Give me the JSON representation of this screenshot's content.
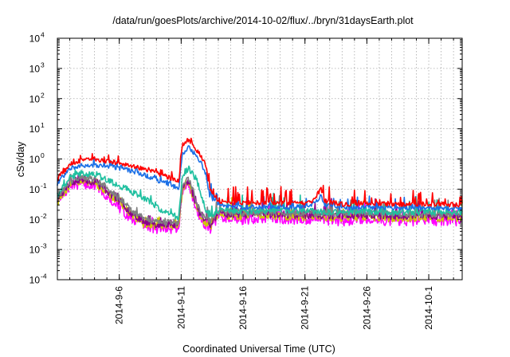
{
  "chart_data": {
    "type": "line",
    "title": "/data/run/goesPlots/archive/2014-10-02/flux/../bryn/31daysEarth.plot",
    "xlabel": "Coordinated Universal Time (UTC)",
    "ylabel": "cSv/day",
    "y_scale": "log",
    "xlim": [
      1.0,
      33.7
    ],
    "ylim_exp": [
      -4,
      4
    ],
    "grid": true,
    "x_unit_note": "day offset from 2014-09-01",
    "x_ticks": [
      {
        "x": 6,
        "label": "2014-9-6"
      },
      {
        "x": 11,
        "label": "2014-9-11"
      },
      {
        "x": 16,
        "label": "2014-9-16"
      },
      {
        "x": 21,
        "label": "2014-9-21"
      },
      {
        "x": 26,
        "label": "2014-9-26"
      },
      {
        "x": 31,
        "label": "2014-10-1"
      }
    ],
    "y_ticks": [
      {
        "exp": -4,
        "base": "10",
        "sup": "-4"
      },
      {
        "exp": -3,
        "base": "10",
        "sup": "-3"
      },
      {
        "exp": -2,
        "base": "10",
        "sup": "-2"
      },
      {
        "exp": -1,
        "base": "10",
        "sup": "-1"
      },
      {
        "exp": 0,
        "base": "10",
        "sup": "0"
      },
      {
        "exp": 1,
        "base": "10",
        "sup": "1"
      },
      {
        "exp": 2,
        "base": "10",
        "sup": "2"
      },
      {
        "exp": 3,
        "base": "10",
        "sup": "3"
      },
      {
        "exp": 4,
        "base": "10",
        "sup": "4"
      }
    ],
    "series": [
      {
        "color": "#ff00ff",
        "noise": 0.35,
        "seed": 7,
        "points": [
          [
            1.0,
            0.03
          ],
          [
            2.0,
            0.13
          ],
          [
            3.0,
            0.16
          ],
          [
            4.0,
            0.12
          ],
          [
            5.0,
            0.06
          ],
          [
            6.0,
            0.025
          ],
          [
            7.0,
            0.01
          ],
          [
            8.0,
            0.006
          ],
          [
            9.0,
            0.005
          ],
          [
            10.0,
            0.005
          ],
          [
            10.8,
            0.005
          ],
          [
            11.1,
            0.1
          ],
          [
            11.6,
            0.15
          ],
          [
            12.0,
            0.04
          ],
          [
            12.5,
            0.012
          ],
          [
            13.0,
            0.006
          ],
          [
            13.4,
            0.005
          ],
          [
            14.0,
            0.012
          ],
          [
            16.0,
            0.01
          ],
          [
            18.0,
            0.011
          ],
          [
            20.0,
            0.01
          ],
          [
            22.0,
            0.01
          ],
          [
            24.0,
            0.009
          ],
          [
            26.0,
            0.01
          ],
          [
            28.0,
            0.009
          ],
          [
            30.0,
            0.009
          ],
          [
            32.0,
            0.009
          ],
          [
            33.7,
            0.009
          ]
        ]
      },
      {
        "color": "#cccc00",
        "noise": 0.25,
        "seed": 11,
        "points": [
          [
            1.0,
            0.035
          ],
          [
            2.0,
            0.14
          ],
          [
            3.0,
            0.2
          ],
          [
            4.0,
            0.15
          ],
          [
            5.0,
            0.08
          ],
          [
            6.0,
            0.035
          ],
          [
            7.0,
            0.014
          ],
          [
            8.0,
            0.007
          ],
          [
            9.0,
            0.006
          ],
          [
            10.0,
            0.006
          ],
          [
            10.8,
            0.006
          ],
          [
            11.1,
            0.1
          ],
          [
            11.6,
            0.16
          ],
          [
            12.0,
            0.05
          ],
          [
            12.5,
            0.013
          ],
          [
            13.0,
            0.007
          ],
          [
            13.4,
            0.006
          ],
          [
            14.0,
            0.014
          ],
          [
            16.0,
            0.012
          ],
          [
            18.0,
            0.013
          ],
          [
            20.0,
            0.012
          ],
          [
            22.0,
            0.012
          ],
          [
            24.0,
            0.011
          ],
          [
            26.0,
            0.012
          ],
          [
            28.0,
            0.011
          ],
          [
            30.0,
            0.011
          ],
          [
            32.0,
            0.011
          ],
          [
            33.7,
            0.011
          ]
        ]
      },
      {
        "color": "#8b008b",
        "noise": 0.25,
        "seed": 23,
        "points": [
          [
            1.0,
            0.04
          ],
          [
            2.0,
            0.16
          ],
          [
            3.0,
            0.22
          ],
          [
            4.0,
            0.17
          ],
          [
            5.0,
            0.09
          ],
          [
            6.0,
            0.04
          ],
          [
            7.0,
            0.016
          ],
          [
            8.0,
            0.009
          ],
          [
            9.0,
            0.007
          ],
          [
            10.0,
            0.007
          ],
          [
            10.8,
            0.007
          ],
          [
            11.1,
            0.12
          ],
          [
            11.6,
            0.18
          ],
          [
            12.0,
            0.06
          ],
          [
            12.5,
            0.015
          ],
          [
            13.0,
            0.008
          ],
          [
            13.4,
            0.007
          ],
          [
            14.0,
            0.016
          ],
          [
            16.0,
            0.014
          ],
          [
            18.0,
            0.015
          ],
          [
            20.0,
            0.014
          ],
          [
            22.0,
            0.014
          ],
          [
            24.0,
            0.013
          ],
          [
            26.0,
            0.014
          ],
          [
            28.0,
            0.013
          ],
          [
            30.0,
            0.013
          ],
          [
            32.0,
            0.013
          ],
          [
            33.7,
            0.013
          ]
        ]
      },
      {
        "color": "#808080",
        "noise": 0.22,
        "seed": 31,
        "points": [
          [
            1.0,
            0.045
          ],
          [
            2.0,
            0.18
          ],
          [
            3.0,
            0.26
          ],
          [
            4.0,
            0.2
          ],
          [
            5.0,
            0.11
          ],
          [
            6.0,
            0.05
          ],
          [
            7.0,
            0.02
          ],
          [
            8.0,
            0.011
          ],
          [
            9.0,
            0.008
          ],
          [
            10.0,
            0.008
          ],
          [
            10.8,
            0.008
          ],
          [
            11.1,
            0.15
          ],
          [
            11.6,
            0.22
          ],
          [
            12.0,
            0.08
          ],
          [
            12.5,
            0.018
          ],
          [
            13.0,
            0.01
          ],
          [
            13.4,
            0.009
          ],
          [
            14.0,
            0.018
          ],
          [
            16.0,
            0.016
          ],
          [
            18.0,
            0.017
          ],
          [
            20.0,
            0.016
          ],
          [
            22.0,
            0.016
          ],
          [
            24.0,
            0.015
          ],
          [
            26.0,
            0.016
          ],
          [
            28.0,
            0.015
          ],
          [
            30.0,
            0.015
          ],
          [
            32.0,
            0.015
          ],
          [
            33.7,
            0.015
          ]
        ]
      },
      {
        "color": "#20c0a0",
        "noise": 0.2,
        "seed": 41,
        "points": [
          [
            1.0,
            0.06
          ],
          [
            2.0,
            0.25
          ],
          [
            3.0,
            0.35
          ],
          [
            4.0,
            0.3
          ],
          [
            5.0,
            0.2
          ],
          [
            6.0,
            0.13
          ],
          [
            7.0,
            0.08
          ],
          [
            8.0,
            0.05
          ],
          [
            9.0,
            0.025
          ],
          [
            10.0,
            0.015
          ],
          [
            10.8,
            0.012
          ],
          [
            11.1,
            0.3
          ],
          [
            11.6,
            0.5
          ],
          [
            12.0,
            0.3
          ],
          [
            12.5,
            0.1
          ],
          [
            13.0,
            0.02
          ],
          [
            13.4,
            0.012
          ],
          [
            14.0,
            0.02
          ],
          [
            16.0,
            0.018
          ],
          [
            18.0,
            0.02
          ],
          [
            20.0,
            0.019
          ],
          [
            22.0,
            0.018
          ],
          [
            24.0,
            0.017
          ],
          [
            26.0,
            0.018
          ],
          [
            28.0,
            0.017
          ],
          [
            30.0,
            0.017
          ],
          [
            32.0,
            0.017
          ],
          [
            33.7,
            0.017
          ]
        ]
      },
      {
        "color": "#1a6fe6",
        "noise": 0.15,
        "seed": 53,
        "points": [
          [
            1.0,
            0.15
          ],
          [
            2.0,
            0.5
          ],
          [
            3.0,
            0.6
          ],
          [
            4.0,
            0.62
          ],
          [
            5.0,
            0.55
          ],
          [
            6.0,
            0.5
          ],
          [
            7.0,
            0.4
          ],
          [
            8.0,
            0.3
          ],
          [
            9.0,
            0.2
          ],
          [
            10.0,
            0.15
          ],
          [
            10.8,
            0.1
          ],
          [
            11.1,
            1.5
          ],
          [
            11.6,
            2.5
          ],
          [
            12.0,
            1.5
          ],
          [
            12.5,
            0.9
          ],
          [
            13.0,
            0.3
          ],
          [
            13.3,
            0.06
          ],
          [
            14.0,
            0.03
          ],
          [
            16.0,
            0.025
          ],
          [
            18.0,
            0.026
          ],
          [
            20.0,
            0.025
          ],
          [
            21.5,
            0.028
          ],
          [
            22.3,
            0.06
          ],
          [
            22.6,
            0.03
          ],
          [
            24.0,
            0.024
          ],
          [
            26.0,
            0.025
          ],
          [
            28.0,
            0.024
          ],
          [
            30.0,
            0.024
          ],
          [
            32.0,
            0.024
          ],
          [
            33.7,
            0.022
          ]
        ]
      },
      {
        "color": "#ff0000",
        "noise": 0.15,
        "seed": 67,
        "points": [
          [
            1.0,
            0.2
          ],
          [
            2.0,
            0.7
          ],
          [
            3.0,
            0.9
          ],
          [
            4.0,
            0.95
          ],
          [
            5.0,
            0.85
          ],
          [
            6.0,
            0.75
          ],
          [
            7.0,
            0.6
          ],
          [
            8.0,
            0.45
          ],
          [
            9.0,
            0.35
          ],
          [
            10.0,
            0.25
          ],
          [
            10.8,
            0.18
          ],
          [
            11.1,
            3.0
          ],
          [
            11.6,
            4.5
          ],
          [
            12.0,
            2.5
          ],
          [
            12.5,
            1.5
          ],
          [
            13.0,
            0.6
          ],
          [
            13.3,
            0.1
          ],
          [
            14.0,
            0.04
          ],
          [
            16.0,
            0.035
          ],
          [
            18.0,
            0.036
          ],
          [
            20.0,
            0.034
          ],
          [
            21.5,
            0.036
          ],
          [
            22.3,
            0.1
          ],
          [
            22.6,
            0.04
          ],
          [
            24.0,
            0.032
          ],
          [
            26.0,
            0.034
          ],
          [
            28.0,
            0.032
          ],
          [
            30.0,
            0.032
          ],
          [
            32.0,
            0.032
          ],
          [
            33.7,
            0.03
          ]
        ]
      }
    ]
  }
}
